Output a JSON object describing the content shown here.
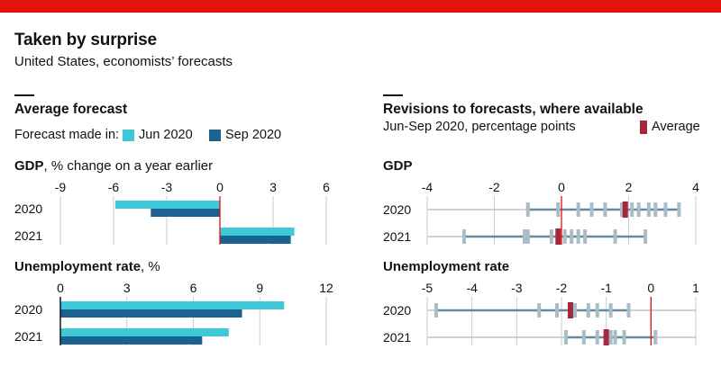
{
  "header": {
    "title": "Taken by surprise",
    "subtitle": "United States, economists’ forecasts"
  },
  "left_panel": {
    "title": "Average forecast",
    "legend_label": "Forecast made in:",
    "legend": [
      {
        "name": "Jun 2020",
        "color": "#3ec8d8"
      },
      {
        "name": "Sep 2020",
        "color": "#1a6390"
      }
    ]
  },
  "right_panel": {
    "title": "Revisions to forecasts, where available",
    "subtitle": "Jun-Sep 2020, percentage points",
    "legend": [
      {
        "name": "Average",
        "color": "#a5283f"
      }
    ]
  },
  "colors": {
    "jun": "#3ec8d8",
    "sep": "#1a6390",
    "range": "#6a8799",
    "tick": "#a9bcc8",
    "average": "#a5283f",
    "zero": "#e3120b",
    "grid": "#c6cfd4"
  },
  "chart_data": [
    {
      "id": "gdp-avg",
      "type": "bar",
      "orientation": "horizontal",
      "title_bold": "GDP",
      "title_rest": ", % change on a year earlier",
      "categories": [
        "2020",
        "2021"
      ],
      "xlim": [
        -9,
        6
      ],
      "xticks": [
        "-9",
        "-6",
        "-3",
        "0",
        "3",
        "6"
      ],
      "series": [
        {
          "name": "Jun 2020",
          "values": [
            -5.9,
            4.2
          ]
        },
        {
          "name": "Sep 2020",
          "values": [
            -3.9,
            4.0
          ]
        }
      ]
    },
    {
      "id": "unemp-avg",
      "type": "bar",
      "orientation": "horizontal",
      "title_bold": "Unemployment rate",
      "title_rest": ", %",
      "categories": [
        "2020",
        "2021"
      ],
      "xlim": [
        0,
        12
      ],
      "xticks": [
        "0",
        "3",
        "6",
        "9",
        "12"
      ],
      "series": [
        {
          "name": "Jun 2020",
          "values": [
            10.1,
            7.6
          ]
        },
        {
          "name": "Sep 2020",
          "values": [
            8.2,
            6.4
          ]
        }
      ]
    },
    {
      "id": "gdp-rev",
      "type": "scatter",
      "title_bold": "GDP",
      "title_rest": "",
      "categories": [
        "2020",
        "2021"
      ],
      "xlim": [
        -4,
        4
      ],
      "xticks": [
        "-4",
        "-2",
        "0",
        "2",
        "4"
      ],
      "rows": [
        {
          "min": -4.0,
          "max": 3.5,
          "points": [
            -1.0,
            -0.1,
            0.5,
            0.9,
            1.3,
            1.8,
            2.1,
            2.3,
            2.6,
            2.8,
            3.1,
            3.5
          ],
          "average": 1.9
        },
        {
          "min": -4.0,
          "max": 2.5,
          "points": [
            -2.9,
            -1.1,
            -1.0,
            -0.3,
            0.1,
            0.3,
            0.5,
            0.7,
            1.6,
            2.5
          ],
          "average": -0.1
        }
      ]
    },
    {
      "id": "unemp-rev",
      "type": "scatter",
      "title_bold": "Unemployment rate",
      "title_rest": "",
      "categories": [
        "2020",
        "2021"
      ],
      "xlim": [
        -5,
        1
      ],
      "xticks": [
        "-5",
        "-4",
        "-3",
        "-2",
        "-1",
        "0",
        "1"
      ],
      "rows": [
        {
          "min": -5.0,
          "max": 1.0,
          "points": [
            -4.8,
            -2.5,
            -2.1,
            -1.7,
            -1.4,
            -1.2,
            -0.9,
            -0.5
          ],
          "average": -1.8
        },
        {
          "min": -5.0,
          "max": 1.0,
          "points": [
            -1.9,
            -1.5,
            -1.2,
            -1.0,
            -0.9,
            -0.8,
            -0.6,
            0.1
          ],
          "average": -1.0
        }
      ]
    }
  ]
}
